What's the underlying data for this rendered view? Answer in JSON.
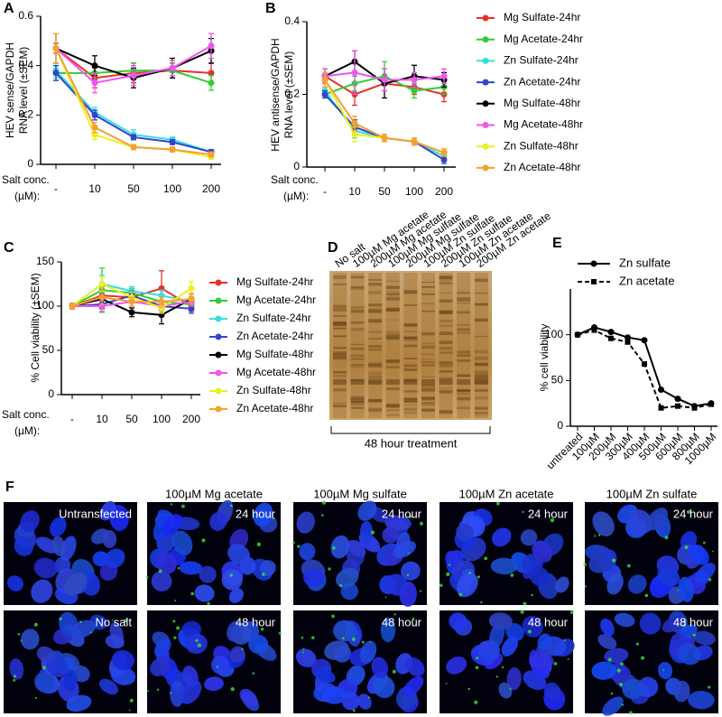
{
  "chart_data": [
    {
      "type": "line",
      "panel": "A",
      "ylabel": [
        "HEV sense/GAPDH",
        "RNA level (±SEM)"
      ],
      "xlabel": [
        "Salt conc.",
        "(µM):"
      ],
      "categories": [
        "-",
        "10",
        "50",
        "100",
        "200"
      ],
      "ylim": [
        0,
        0.6
      ],
      "yticks": [
        0,
        0.2,
        0.4,
        0.6
      ],
      "series": [
        {
          "name": "Mg Sulfate-24hr",
          "color": "#e8302a",
          "values": [
            0.47,
            0.35,
            0.37,
            0.38,
            0.37
          ],
          "errors": [
            0.02,
            0.04,
            0.04,
            0.03,
            0.04
          ]
        },
        {
          "name": "Mg Acetate-24hr",
          "color": "#33cc33",
          "values": [
            0.37,
            0.37,
            0.38,
            0.38,
            0.33
          ],
          "errors": [
            0.03,
            0.03,
            0.03,
            0.03,
            0.03
          ]
        },
        {
          "name": "Zn Sulfate-24hr",
          "color": "#33e0e0",
          "values": [
            0.38,
            0.21,
            0.12,
            0.1,
            0.05
          ],
          "errors": [
            0.03,
            0.02,
            0.02,
            0.01,
            0.01
          ]
        },
        {
          "name": "Zn Acetate-24hr",
          "color": "#3344cc",
          "values": [
            0.37,
            0.2,
            0.11,
            0.09,
            0.05
          ],
          "errors": [
            0.03,
            0.02,
            0.01,
            0.01,
            0.01
          ]
        },
        {
          "name": "Mg Sulfate-48hr",
          "color": "#000000",
          "values": [
            0.47,
            0.4,
            0.35,
            0.39,
            0.46
          ],
          "errors": [
            0.06,
            0.04,
            0.04,
            0.04,
            0.05
          ]
        },
        {
          "name": "Mg Acetate-48hr",
          "color": "#ee55ee",
          "values": [
            0.47,
            0.33,
            0.36,
            0.39,
            0.48
          ],
          "errors": [
            0.06,
            0.04,
            0.04,
            0.03,
            0.05
          ]
        },
        {
          "name": "Zn Sulfate-48hr",
          "color": "#eeee22",
          "values": [
            0.47,
            0.12,
            0.07,
            0.06,
            0.03
          ],
          "errors": [
            0.06,
            0.02,
            0.01,
            0.01,
            0.01
          ]
        },
        {
          "name": "Zn Acetate-48hr",
          "color": "#f5a030",
          "values": [
            0.47,
            0.15,
            0.07,
            0.06,
            0.04
          ],
          "errors": [
            0.06,
            0.02,
            0.01,
            0.01,
            0.01
          ]
        }
      ]
    },
    {
      "type": "line",
      "panel": "B",
      "ylabel": [
        "HEV antisense/GAPDH",
        "RNA level (±SEM)"
      ],
      "xlabel": [
        "Salt conc.",
        "(µM):"
      ],
      "categories": [
        "-",
        "10",
        "50",
        "100",
        "200"
      ],
      "ylim": [
        0,
        0.4
      ],
      "yticks": [
        0,
        0.2,
        0.4
      ],
      "legend": "right",
      "series": [
        {
          "name": "Mg Sulfate-24hr",
          "color": "#e8302a",
          "values": [
            0.25,
            0.2,
            0.23,
            0.22,
            0.2
          ],
          "errors": [
            0.01,
            0.03,
            0.02,
            0.02,
            0.02
          ]
        },
        {
          "name": "Mg Acetate-24hr",
          "color": "#33cc33",
          "values": [
            0.2,
            0.23,
            0.25,
            0.21,
            0.22
          ],
          "errors": [
            0.01,
            0.02,
            0.04,
            0.02,
            0.02
          ]
        },
        {
          "name": "Zn Sulfate-24hr",
          "color": "#33e0e0",
          "values": [
            0.21,
            0.1,
            0.08,
            0.07,
            0.03
          ],
          "errors": [
            0.01,
            0.02,
            0.01,
            0.01,
            0.01
          ]
        },
        {
          "name": "Zn Acetate-24hr",
          "color": "#3344cc",
          "values": [
            0.2,
            0.11,
            0.08,
            0.07,
            0.02
          ],
          "errors": [
            0.01,
            0.02,
            0.01,
            0.01,
            0.01
          ]
        },
        {
          "name": "Mg Sulfate-48hr",
          "color": "#000000",
          "values": [
            0.25,
            0.29,
            0.23,
            0.25,
            0.24
          ],
          "errors": [
            0.02,
            0.03,
            0.04,
            0.03,
            0.02
          ]
        },
        {
          "name": "Mg Acetate-48hr",
          "color": "#ee55ee",
          "values": [
            0.25,
            0.26,
            0.24,
            0.24,
            0.25
          ],
          "errors": [
            0.02,
            0.06,
            0.03,
            0.02,
            0.02
          ]
        },
        {
          "name": "Zn Sulfate-48hr",
          "color": "#eeee22",
          "values": [
            0.24,
            0.09,
            0.08,
            0.07,
            0.04
          ],
          "errors": [
            0.02,
            0.02,
            0.01,
            0.01,
            0.01
          ]
        },
        {
          "name": "Zn Acetate-48hr",
          "color": "#f5a030",
          "values": [
            0.24,
            0.12,
            0.08,
            0.07,
            0.04
          ],
          "errors": [
            0.02,
            0.02,
            0.01,
            0.01,
            0.01
          ]
        }
      ]
    },
    {
      "type": "line",
      "panel": "C",
      "ylabel": [
        "% Cell viability (±SEM)"
      ],
      "xlabel": [
        "Salt conc.",
        "(µM):"
      ],
      "categories": [
        "-",
        "10",
        "50",
        "100",
        "200"
      ],
      "ylim": [
        0,
        150
      ],
      "yticks": [
        0,
        50,
        100,
        150
      ],
      "legend": "right",
      "series": [
        {
          "name": "Mg Sulfate-24hr",
          "color": "#e8302a",
          "values": [
            100,
            112,
            110,
            120,
            100
          ],
          "errors": [
            3,
            10,
            5,
            20,
            6
          ]
        },
        {
          "name": "Mg Acetate-24hr",
          "color": "#33cc33",
          "values": [
            100,
            118,
            115,
            105,
            102
          ],
          "errors": [
            3,
            25,
            5,
            8,
            5
          ]
        },
        {
          "name": "Zn Sulfate-24hr",
          "color": "#33e0e0",
          "values": [
            100,
            125,
            117,
            112,
            105
          ],
          "errors": [
            3,
            10,
            5,
            6,
            5
          ]
        },
        {
          "name": "Zn Acetate-24hr",
          "color": "#3344cc",
          "values": [
            100,
            102,
            112,
            100,
            97
          ],
          "errors": [
            3,
            5,
            5,
            5,
            5
          ]
        },
        {
          "name": "Mg Sulfate-48hr",
          "color": "#000000",
          "values": [
            100,
            108,
            93,
            90,
            108
          ],
          "errors": [
            3,
            10,
            5,
            10,
            6
          ]
        },
        {
          "name": "Mg Acetate-48hr",
          "color": "#ee55ee",
          "values": [
            100,
            100,
            105,
            100,
            105
          ],
          "errors": [
            3,
            6,
            5,
            5,
            5
          ]
        },
        {
          "name": "Zn Sulfate-48hr",
          "color": "#eeee22",
          "values": [
            100,
            125,
            110,
            98,
            120
          ],
          "errors": [
            3,
            8,
            6,
            6,
            8
          ]
        },
        {
          "name": "Zn Acetate-48hr",
          "color": "#f5a030",
          "values": [
            100,
            110,
            105,
            105,
            108
          ],
          "errors": [
            3,
            8,
            5,
            6,
            6
          ]
        }
      ]
    },
    {
      "type": "line",
      "panel": "E",
      "ylabel": [
        "% cell viability"
      ],
      "categories": [
        "untreated",
        "100µM",
        "200µM",
        "300µM",
        "400µM",
        "500µM",
        "600µM",
        "800µM",
        "1000µM"
      ],
      "ylim": [
        0,
        150
      ],
      "yticks": [
        0,
        50,
        100
      ],
      "legend": "top",
      "series": [
        {
          "name": "Zn sulfate",
          "color": "#000000",
          "line_style": "solid",
          "marker": "circle",
          "values": [
            100,
            108,
            103,
            97,
            94,
            40,
            30,
            22,
            25
          ]
        },
        {
          "name": "Zn acetate",
          "color": "#000000",
          "line_style": "dashed",
          "marker": "square",
          "values": [
            100,
            105,
            96,
            92,
            68,
            20,
            22,
            20,
            24
          ]
        }
      ]
    }
  ],
  "gel": {
    "panel": "D",
    "lanes": [
      "No salt",
      "100µM Mg acetate",
      "200µM Mg acetate",
      "100µM Mg sulfate",
      "200µM Mg sulfate",
      "100µM Zn sulfate",
      "200µM Zn sulfate",
      "100µM Zn acetate",
      "200µM Zn acetate"
    ],
    "caption": "48 hour treatment"
  },
  "micrographs": {
    "panel": "F",
    "columns": [
      "100µM Mg acetate",
      "100µM Mg sulfate",
      "100µM Zn acetate",
      "100µM Zn sulfate"
    ],
    "rows": [
      [
        "Untransfected",
        "24 hour",
        "24 hour",
        "24 hour",
        "24 hour"
      ],
      [
        "No salt",
        "48 hour",
        "48 hour",
        "48 hour",
        "48 hour"
      ]
    ]
  }
}
